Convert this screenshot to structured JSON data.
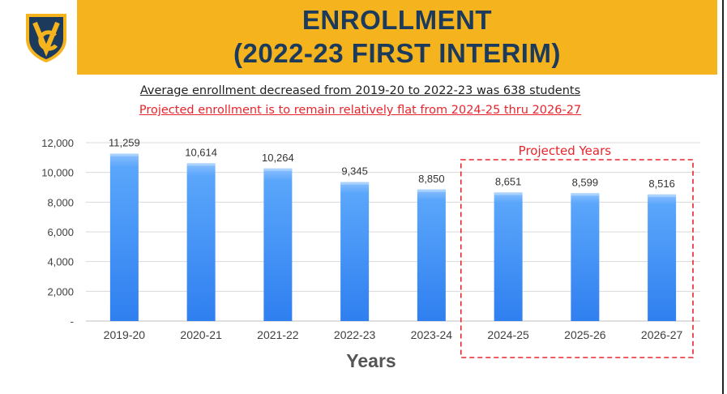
{
  "header": {
    "title_line1": "ENROLLMENT",
    "title_line2": "(2022-23 FIRST INTERIM)",
    "colors": {
      "band": "#f5b41e",
      "title": "#1b3a5c"
    }
  },
  "logo": {
    "icon": "vc-shield-icon"
  },
  "subtitles": {
    "line1": "Average enrollment decreased from 2019-20 to 2022-23 was 638 students",
    "line2": "Projected enrollment is to remain relatively flat from 2024-25 thru 2026-27"
  },
  "chart_data": {
    "type": "bar",
    "categories": [
      "2019-20",
      "2020-21",
      "2021-22",
      "2022-23",
      "2023-24",
      "2024-25",
      "2025-26",
      "2026-27"
    ],
    "values": [
      11259,
      10614,
      10264,
      9345,
      8850,
      8651,
      8599,
      8516
    ],
    "data_labels": [
      "11,259",
      "10,614",
      "10,264",
      "9,345",
      "8,850",
      "8,651",
      "8,599",
      "8,516"
    ],
    "xlabel": "Years",
    "ylabel": "",
    "ylim": [
      0,
      12000
    ],
    "y_ticks": [
      0,
      2000,
      4000,
      6000,
      8000,
      10000,
      12000
    ],
    "y_tick_labels": [
      "-",
      "2,000",
      "4,000",
      "6,000",
      "8,000",
      "10,000",
      "12,000"
    ],
    "grid": true,
    "bar_color": "#3d8cf0",
    "annotation": {
      "text": "Projected Years",
      "covers": [
        "2024-25",
        "2025-26",
        "2026-27"
      ],
      "color": "#e8252c"
    }
  }
}
